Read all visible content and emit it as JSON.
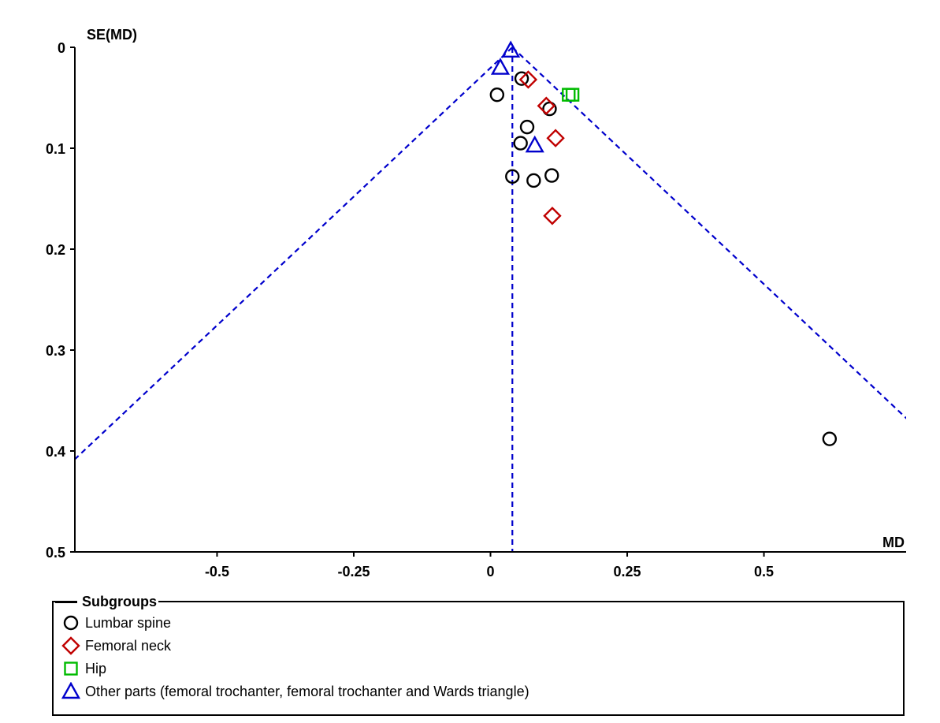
{
  "chart_data": {
    "type": "scatter",
    "plot_kind": "funnel",
    "xlabel": "MD",
    "ylabel": "SE(MD)",
    "xlim": [
      -0.76,
      0.76
    ],
    "ylim": [
      0,
      0.5
    ],
    "y_reversed": true,
    "x_ticks": [
      "-0.5",
      "-0.25",
      "0",
      "0.25",
      "0.5"
    ],
    "x_tick_values": [
      -0.5,
      -0.25,
      0,
      0.25,
      0.5
    ],
    "y_ticks": [
      "0",
      "0.1",
      "0.2",
      "0.3",
      "0.4",
      "0.5"
    ],
    "y_tick_values": [
      0,
      0.1,
      0.2,
      0.3,
      0.4,
      0.5
    ],
    "pooled_estimate": 0.04,
    "funnel_line_color": "#0000cc",
    "legend": {
      "title": "Subgroups",
      "placement": "bottom"
    },
    "series": [
      {
        "name": "Lumbar spine",
        "marker": "circle",
        "color": "#000000",
        "points": [
          {
            "x": 0.057,
            "y": 0.031
          },
          {
            "x": 0.012,
            "y": 0.047
          },
          {
            "x": 0.108,
            "y": 0.061
          },
          {
            "x": 0.067,
            "y": 0.079
          },
          {
            "x": 0.055,
            "y": 0.095
          },
          {
            "x": 0.04,
            "y": 0.128
          },
          {
            "x": 0.079,
            "y": 0.132
          },
          {
            "x": 0.112,
            "y": 0.127
          },
          {
            "x": 0.62,
            "y": 0.388
          }
        ]
      },
      {
        "name": "Femoral neck",
        "marker": "diamond",
        "color": "#c00000",
        "points": [
          {
            "x": 0.069,
            "y": 0.032
          },
          {
            "x": 0.102,
            "y": 0.058
          },
          {
            "x": 0.119,
            "y": 0.09
          },
          {
            "x": 0.113,
            "y": 0.167
          }
        ]
      },
      {
        "name": "Hip",
        "marker": "square",
        "color": "#00bb00",
        "points": [
          {
            "x": 0.143,
            "y": 0.047
          },
          {
            "x": 0.15,
            "y": 0.047
          }
        ]
      },
      {
        "name": "Other parts (femoral trochanter, femoral trochanter and Wards triangle)",
        "marker": "triangle",
        "color": "#0000cc",
        "points": [
          {
            "x": 0.037,
            "y": 0.003
          },
          {
            "x": 0.018,
            "y": 0.02
          },
          {
            "x": 0.081,
            "y": 0.097
          }
        ]
      }
    ]
  }
}
